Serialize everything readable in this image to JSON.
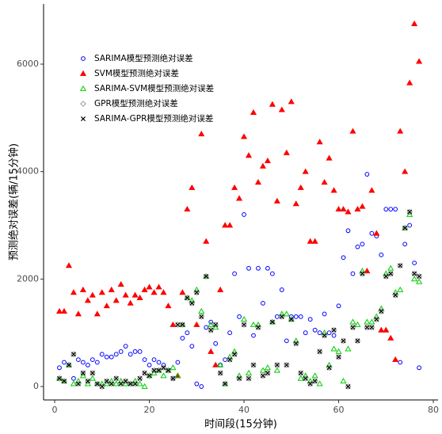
{
  "chart_data": {
    "type": "scatter",
    "x_label": "时间段(15分钟)",
    "y_label": "预测绝对误差(辆/15分钟)",
    "x": [
      1,
      2,
      3,
      4,
      5,
      6,
      7,
      8,
      9,
      10,
      11,
      12,
      13,
      14,
      15,
      16,
      17,
      18,
      19,
      20,
      21,
      22,
      23,
      24,
      25,
      26,
      27,
      28,
      29,
      30,
      31,
      32,
      33,
      34,
      35,
      36,
      37,
      38,
      39,
      40,
      41,
      42,
      43,
      44,
      45,
      46,
      47,
      48,
      49,
      50,
      51,
      52,
      53,
      54,
      55,
      56,
      57,
      58,
      59,
      60,
      61,
      62,
      63,
      64,
      65,
      66,
      67,
      68,
      69,
      70,
      71,
      72,
      73,
      74,
      75,
      76,
      77
    ],
    "series": [
      {
        "name": "SARIMA模型预测绝对误差",
        "color": "#0000ff",
        "marker": "circle",
        "values": [
          350,
          450,
          400,
          150,
          500,
          450,
          400,
          500,
          450,
          600,
          550,
          550,
          600,
          650,
          750,
          600,
          650,
          650,
          500,
          400,
          500,
          450,
          400,
          300,
          150,
          450,
          900,
          1000,
          750,
          50,
          0,
          1100,
          1200,
          800,
          400,
          500,
          1000,
          2100,
          1300,
          3200,
          2200,
          950,
          2200,
          1550,
          2200,
          2100,
          1300,
          1800,
          850,
          1300,
          1300,
          1300,
          1000,
          1250,
          1050,
          1000,
          1350,
          1000,
          950,
          1500,
          2400,
          2900,
          2100,
          2600,
          2650,
          3950,
          2850,
          2800,
          2450,
          3300,
          3300,
          3300,
          450,
          2650,
          3000,
          2300,
          350
        ]
      },
      {
        "name": "SVM模型预测绝对误差",
        "color": "#ff0000",
        "marker": "triangle",
        "values": [
          1400,
          1400,
          2250,
          1750,
          1350,
          1800,
          1600,
          1700,
          1350,
          1750,
          1500,
          1800,
          1600,
          1900,
          1700,
          1550,
          1700,
          1650,
          1800,
          1850,
          1750,
          1850,
          1750,
          1500,
          1150,
          200,
          1750,
          3300,
          3700,
          1150,
          4700,
          2700,
          650,
          400,
          1800,
          3000,
          3000,
          3700,
          3500,
          4650,
          4300,
          5100,
          3800,
          4100,
          4200,
          5250,
          3450,
          5150,
          4350,
          5300,
          3400,
          3700,
          4000,
          2700,
          2700,
          4550,
          3800,
          4250,
          3650,
          3300,
          3300,
          3250,
          4750,
          3300,
          3350,
          2150,
          3650,
          2850,
          1050,
          1050,
          900,
          500,
          4750,
          4000,
          5650,
          6750,
          6050
        ]
      },
      {
        "name": "SARIMA-SVM模型预测绝对误差",
        "color": "#00cc00",
        "marker": "triangle-open",
        "values": [
          150,
          100,
          400,
          50,
          100,
          200,
          50,
          150,
          50,
          50,
          50,
          100,
          50,
          100,
          50,
          50,
          100,
          50,
          0,
          200,
          250,
          300,
          200,
          300,
          350,
          200,
          1150,
          1650,
          1600,
          1800,
          1400,
          2050,
          1150,
          1100,
          400,
          50,
          550,
          650,
          200,
          1250,
          250,
          1150,
          1150,
          300,
          350,
          1200,
          300,
          1350,
          1350,
          1250,
          850,
          150,
          200,
          100,
          200,
          50,
          1000,
          400,
          700,
          650,
          100,
          700,
          1200,
          1150,
          2150,
          1200,
          1200,
          1300,
          1450,
          2100,
          2200,
          1750,
          1800,
          2950,
          3200,
          2000,
          1950
        ]
      },
      {
        "name": "GPR模型预测绝对误差",
        "color": "#999999",
        "marker": "diamond",
        "values": [
          150,
          100,
          400,
          600,
          50,
          250,
          100,
          250,
          50,
          0,
          100,
          50,
          150,
          50,
          100,
          50,
          50,
          150,
          250,
          200,
          300,
          300,
          350,
          300,
          150,
          1150,
          1150,
          1650,
          1550,
          1750,
          1300,
          2050,
          1050,
          1150,
          250,
          50,
          500,
          600,
          150,
          1150,
          150,
          400,
          1100,
          200,
          250,
          1200,
          400,
          1300,
          400,
          1250,
          800,
          250,
          150,
          50,
          100,
          650,
          950,
          350,
          1050,
          550,
          850,
          0,
          1100,
          850,
          2100,
          1100,
          1100,
          1250,
          1400,
          2050,
          2100,
          1700,
          2250,
          2950,
          3250,
          2100,
          2050
        ]
      },
      {
        "name": "SARIMA-GPR模型预测绝对误差",
        "color": "#000000",
        "marker": "x",
        "values": [
          150,
          100,
          400,
          600,
          50,
          250,
          100,
          250,
          50,
          0,
          100,
          50,
          150,
          50,
          100,
          50,
          50,
          150,
          250,
          200,
          300,
          300,
          350,
          300,
          150,
          1150,
          1150,
          1650,
          1550,
          1750,
          1300,
          2050,
          1050,
          1150,
          250,
          50,
          500,
          600,
          150,
          1150,
          150,
          400,
          1100,
          200,
          250,
          1200,
          400,
          1300,
          400,
          1250,
          800,
          250,
          150,
          50,
          100,
          650,
          950,
          350,
          1050,
          550,
          850,
          0,
          1100,
          850,
          2100,
          1100,
          1100,
          1250,
          1400,
          2050,
          2100,
          1700,
          2250,
          2950,
          3250,
          2100,
          2050
        ]
      }
    ],
    "xlim": [
      -2.35,
      81
    ],
    "xticks": [
      0,
      20,
      40,
      60,
      80
    ],
    "ylim": [
      -250,
      7120
    ],
    "yticks": [
      0,
      2000,
      4000,
      6000
    ],
    "legend": "top-left",
    "grid": false
  }
}
